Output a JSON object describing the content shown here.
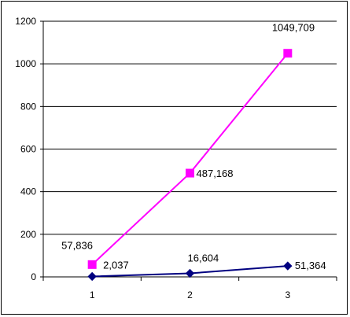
{
  "chart_data": {
    "type": "line",
    "title": "",
    "xlabel": "",
    "ylabel": "",
    "categories": [
      "1",
      "2",
      "3"
    ],
    "ylim": [
      0,
      1200
    ],
    "yticks": [
      0,
      200,
      400,
      600,
      800,
      1000,
      1200
    ],
    "grid": true,
    "legend": "none",
    "series": [
      {
        "values": [
          57.836,
          487.168,
          1049.709
        ],
        "labels": [
          "57,836",
          "487,168",
          "1049,709"
        ],
        "color": "#ff00ff",
        "marker": "square"
      },
      {
        "values": [
          2.037,
          16.604,
          51.364
        ],
        "labels": [
          "2,037",
          "16,604",
          "51,364"
        ],
        "color": "#000080",
        "marker": "diamond"
      }
    ]
  }
}
